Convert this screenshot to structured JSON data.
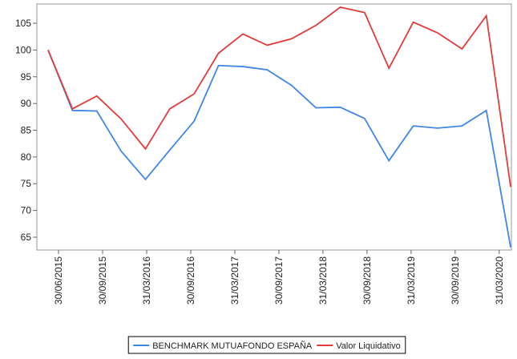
{
  "chart_data": {
    "type": "line",
    "x": [
      0,
      1,
      2,
      3,
      4,
      5,
      6,
      7,
      8,
      9,
      10,
      11,
      12,
      13,
      14,
      15,
      16,
      17,
      18,
      19
    ],
    "xlim": [
      -0.46,
      19.03
    ],
    "xticks": [
      {
        "value": 0.43,
        "label": "30/06/2015"
      },
      {
        "value": 2.24,
        "label": "30/09/2015"
      },
      {
        "value": 4.05,
        "label": "31/03/2016"
      },
      {
        "value": 5.86,
        "label": "30/09/2016"
      },
      {
        "value": 7.67,
        "label": "31/03/2017"
      },
      {
        "value": 9.48,
        "label": "30/09/2017"
      },
      {
        "value": 11.29,
        "label": "31/03/2018"
      },
      {
        "value": 13.1,
        "label": "30/09/2018"
      },
      {
        "value": 14.91,
        "label": "31/03/2019"
      },
      {
        "value": 16.72,
        "label": "30/09/2019"
      },
      {
        "value": 18.53,
        "label": "31/03/2020"
      }
    ],
    "ylim": [
      62.6,
      108.6
    ],
    "yticks": [
      65,
      70,
      75,
      80,
      85,
      90,
      95,
      100,
      105
    ],
    "grid": false,
    "legend": "bottom",
    "series": [
      {
        "name": "BENCHMARK MUTUAFONDO ESPAÑA",
        "color": "#3f86e6",
        "values": [
          100,
          88.7,
          88.6,
          81.1,
          75.8,
          81.3,
          86.7,
          97.1,
          96.9,
          96.3,
          93.4,
          89.2,
          89.3,
          87.2,
          79.3,
          85.8,
          85.4,
          85.8,
          88.7,
          63.1
        ]
      },
      {
        "name": "Valor Liquidativo",
        "color": "#e23b3b",
        "values": [
          100,
          89,
          91.4,
          87.1,
          81.5,
          89,
          91.8,
          99.4,
          103,
          100.9,
          102.1,
          104.6,
          108,
          107,
          96.6,
          105.2,
          103.2,
          100.2,
          106.4,
          74.4
        ]
      }
    ]
  }
}
